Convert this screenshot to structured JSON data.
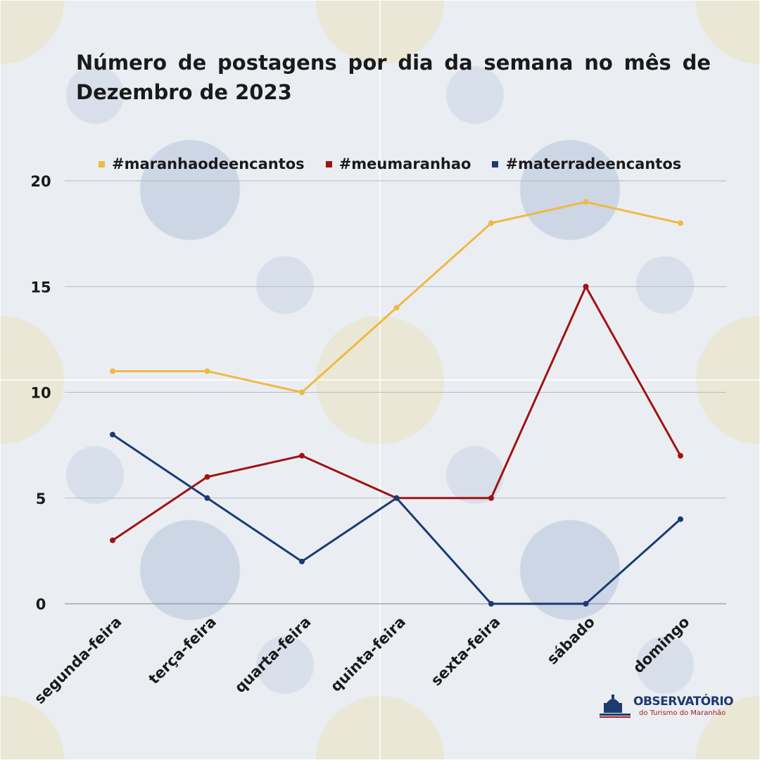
{
  "title": "Número de postagens por dia da semana no mês de Dezembro de 2023",
  "logo": {
    "name": "OBSERVATÓRIO",
    "subtitle": "do Turismo do Maranhão"
  },
  "chart_data": {
    "type": "line",
    "title": "Número de postagens por dia da semana no mês de Dezembro de 2023",
    "categories": [
      "segunda-feira",
      "terça-feira",
      "quarta-feira",
      "quinta-feira",
      "sexta-feira",
      "sábado",
      "domingo"
    ],
    "series": [
      {
        "name": "#maranhaodeencantos",
        "color": "#f0b944",
        "values": [
          11,
          11,
          10,
          14,
          18,
          19,
          18
        ]
      },
      {
        "name": "#meumaranhao",
        "color": "#a11212",
        "values": [
          3,
          6,
          7,
          5,
          5,
          15,
          7
        ]
      },
      {
        "name": "#materradeencantos",
        "color": "#1c3a72",
        "values": [
          8,
          5,
          2,
          5,
          0,
          0,
          4
        ]
      }
    ],
    "ylim": [
      0,
      20
    ],
    "yticks": [
      0,
      5,
      10,
      15,
      20
    ],
    "grid": true,
    "legend": "top"
  }
}
